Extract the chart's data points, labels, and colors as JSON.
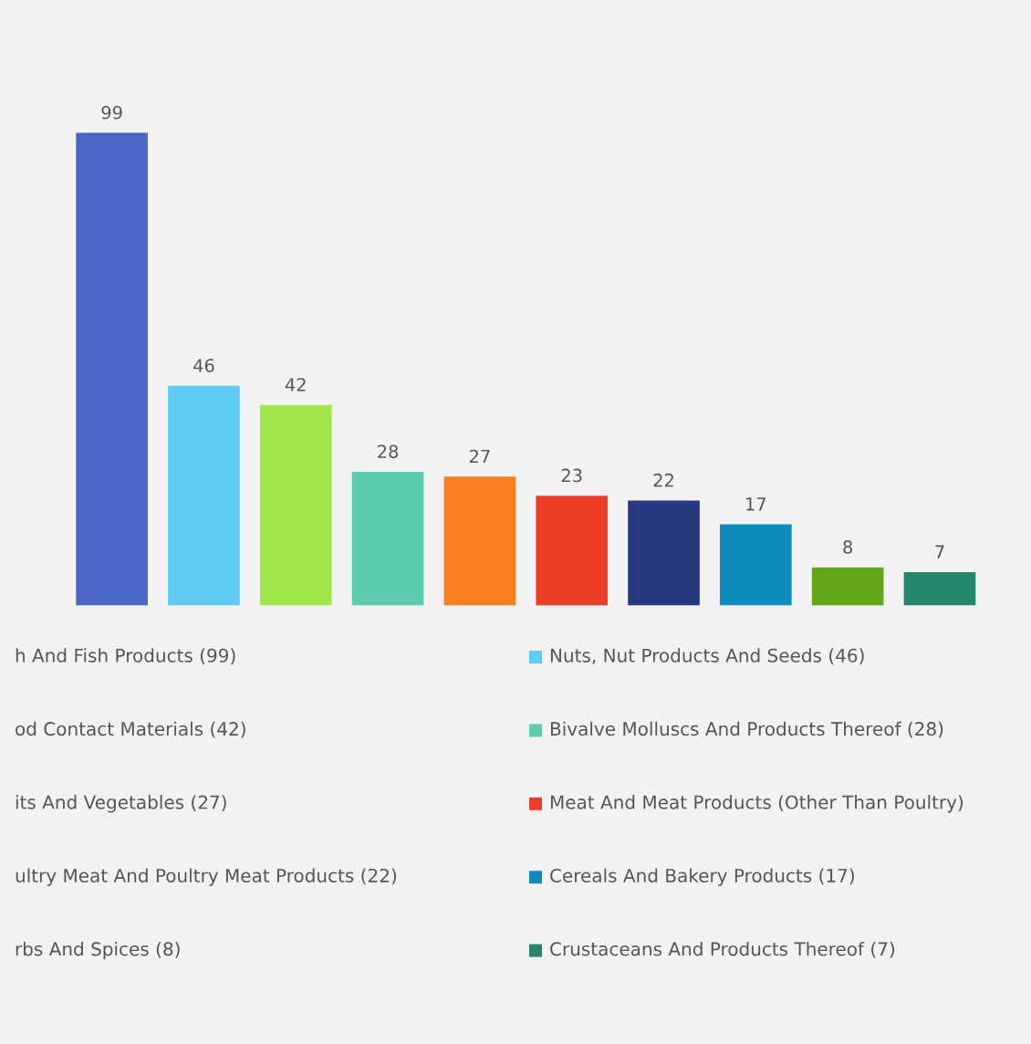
{
  "chart_data": {
    "type": "bar",
    "data_labels": true,
    "grid": false,
    "categories": [
      null,
      null,
      null,
      null,
      null,
      null,
      null,
      null,
      null,
      null
    ],
    "values": [
      99,
      46,
      42,
      28,
      27,
      23,
      22,
      17,
      8,
      7
    ],
    "colors": [
      "#4a66c8",
      "#5ecbf0",
      "#a3e64b",
      "#5ccdb0",
      "#fd7f24",
      "#ee3e25",
      "#25377d",
      "#0e8bbd",
      "#63a61a",
      "#23856b"
    ],
    "annotations": [
      "h And Fish Products (99)",
      "Nuts, Nut Products And Seeds (46)",
      "od Contact Materials (42)",
      "Bivalve Molluscs And Products Thereof (28)",
      "its And Vegetables (27)",
      "Meat And Meat Products (Other Than Poultry)",
      "ultry Meat And Poultry Meat Products (22)",
      "Cereals And Bakery Products (17)",
      "rbs And Spices (8)",
      "Crustaceans And Products Thereof (7)"
    ]
  }
}
